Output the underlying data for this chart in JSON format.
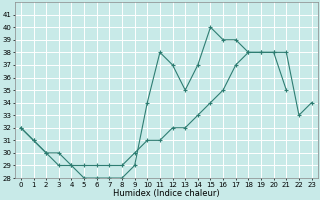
{
  "title": "",
  "xlabel": "Humidex (Indice chaleur)",
  "ylabel": "",
  "bg_color": "#c8eae8",
  "grid_color": "#ffffff",
  "line_color": "#2e7d72",
  "x_hours": [
    0,
    1,
    2,
    3,
    4,
    5,
    6,
    7,
    8,
    9,
    10,
    11,
    12,
    13,
    14,
    15,
    16,
    17,
    18,
    19,
    20,
    21,
    22,
    23
  ],
  "line1_y": [
    32,
    31,
    30,
    29,
    29,
    28,
    28,
    28,
    28,
    29,
    34,
    38,
    37,
    35,
    37,
    40,
    39,
    39,
    38,
    38,
    38,
    35,
    null,
    null
  ],
  "line2_y": [
    32,
    31,
    30,
    30,
    29,
    29,
    29,
    29,
    29,
    30,
    31,
    31,
    32,
    32,
    33,
    34,
    35,
    37,
    38,
    38,
    38,
    38,
    33,
    34
  ],
  "ylim": [
    28,
    42
  ],
  "xlim": [
    -0.5,
    23.5
  ],
  "yticks": [
    28,
    29,
    30,
    31,
    32,
    33,
    34,
    35,
    36,
    37,
    38,
    39,
    40,
    41
  ],
  "xticks": [
    0,
    1,
    2,
    3,
    4,
    5,
    6,
    7,
    8,
    9,
    10,
    11,
    12,
    13,
    14,
    15,
    16,
    17,
    18,
    19,
    20,
    21,
    22,
    23
  ],
  "tick_fontsize": 5.0,
  "xlabel_fontsize": 6.0,
  "line_width": 0.8,
  "marker_size": 3.0
}
